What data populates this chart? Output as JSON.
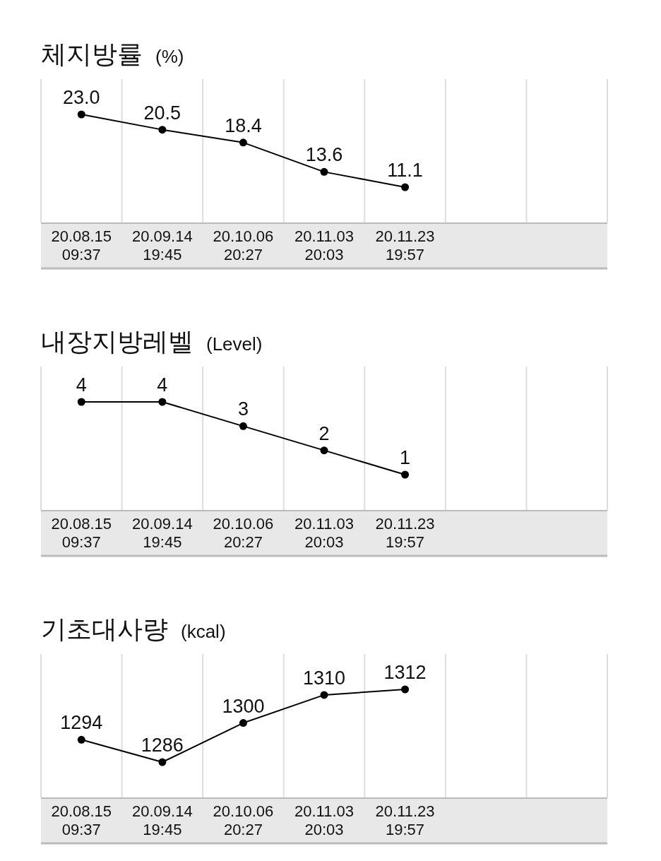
{
  "chart_data": [
    {
      "type": "line",
      "title": "체지방률",
      "subtitle": "(%)",
      "categories": [
        "20.08.15\n09:37",
        "20.09.14\n19:45",
        "20.10.06\n20:27",
        "20.11.03\n20:03",
        "20.11.23\n19:57",
        null,
        null
      ],
      "values": [
        23.0,
        20.5,
        18.4,
        13.6,
        11.1,
        null,
        null
      ],
      "value_labels": [
        "23.0",
        "20.5",
        "18.4",
        "13.6",
        "11.1",
        null,
        null
      ],
      "color": "#000000",
      "marker": "circle",
      "grid": "x"
    },
    {
      "type": "line",
      "title": "내장지방레벨",
      "subtitle": "(Level)",
      "categories": [
        "20.08.15\n09:37",
        "20.09.14\n19:45",
        "20.10.06\n20:27",
        "20.11.03\n20:03",
        "20.11.23\n19:57",
        null,
        null
      ],
      "values": [
        4,
        4,
        3,
        2,
        1,
        null,
        null
      ],
      "color": "#000000",
      "marker": "circle",
      "grid": "x",
      "data_labels": true
    },
    {
      "type": "line",
      "title": "기초대사량",
      "subtitle": "(kcal)",
      "categories": [
        "20.08.15\n09:37",
        "20.09.14\n19:45",
        "20.10.06\n20:27",
        "20.11.03\n20:03",
        "20.11.23\n19:57",
        null,
        null
      ],
      "values": [
        1294,
        1286,
        1300,
        1310,
        1312,
        null,
        null
      ],
      "color": "#000000",
      "marker": "circle",
      "grid": "x",
      "data_labels": true
    }
  ]
}
